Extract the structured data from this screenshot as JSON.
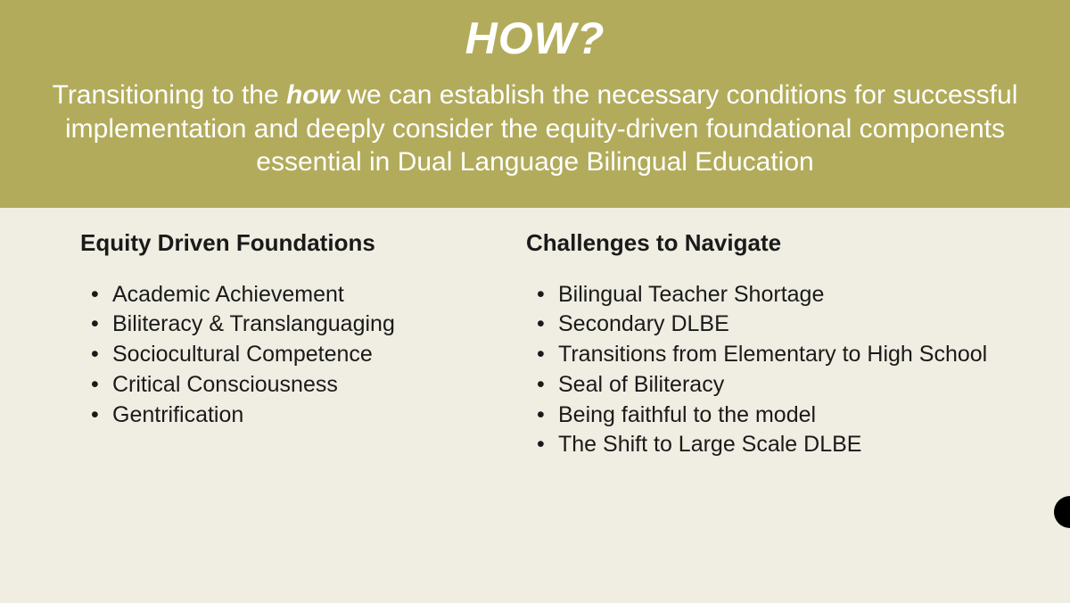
{
  "banner": {
    "title": "HOW?",
    "subtitle_pre": "Transitioning to the ",
    "subtitle_em": "how",
    "subtitle_post": " we can establish the necessary conditions for successful implementation and deeply consider the equity-driven foundational components essential in Dual Language Bilingual Education",
    "background_color": "#b2ab5b",
    "text_color": "#ffffff",
    "title_fontsize": 50,
    "subtitle_fontsize": 30
  },
  "page": {
    "background_color": "#f0ede2",
    "text_color": "#1a1a1a",
    "heading_fontsize": 26,
    "item_fontsize": 25
  },
  "left": {
    "heading": "Equity Driven Foundations",
    "items": [
      "Academic Achievement",
      "Biliteracy & Translanguaging",
      "Sociocultural Competence",
      "Critical Consciousness",
      "Gentrification"
    ]
  },
  "right": {
    "heading": "Challenges to Navigate",
    "items": [
      "Bilingual Teacher Shortage",
      "Secondary DLBE",
      "Transitions from Elementary to High School",
      "Seal of Biliteracy",
      "Being faithful to the model",
      "The Shift to Large Scale DLBE"
    ]
  }
}
